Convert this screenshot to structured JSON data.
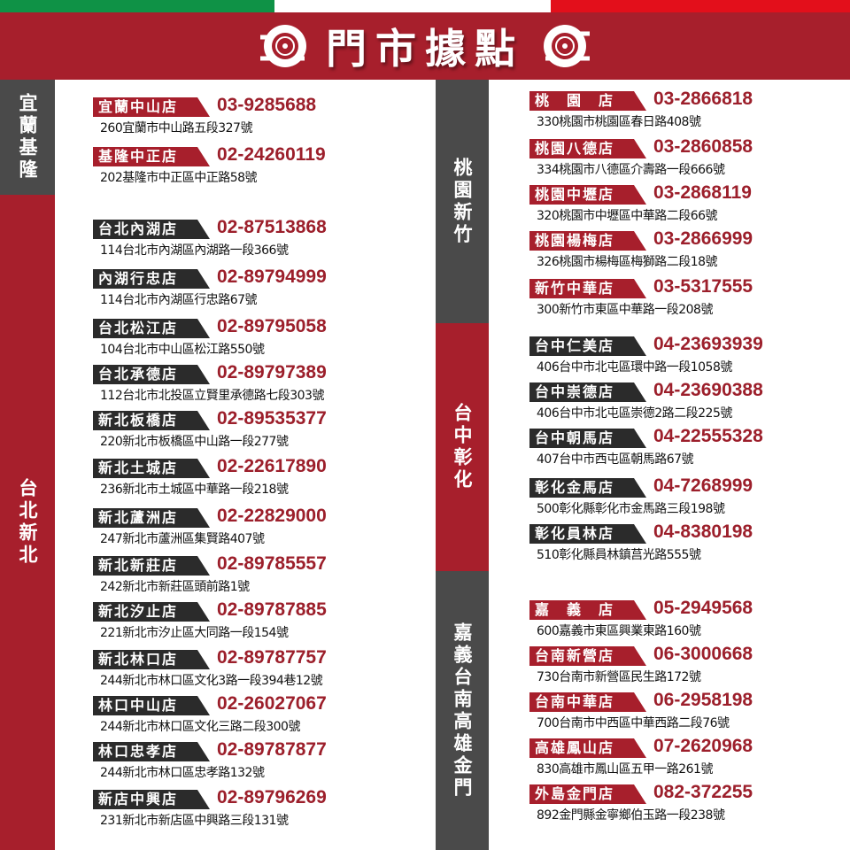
{
  "header": {
    "title": "門市據點",
    "icon": "tire-icon",
    "colors": {
      "red": "#a71f2c",
      "dark": "#4a4a4a",
      "green": "#0f9246"
    }
  },
  "regions": [
    {
      "name": "宜蘭基隆",
      "color": "dark",
      "stores": [
        {
          "name": "宜蘭中山店",
          "phone": "03-9285688",
          "address": "260宜蘭市中山路五段327號"
        },
        {
          "name": "基隆中正店",
          "phone": "02-24260119",
          "address": "202基隆市中正區中正路58號"
        }
      ]
    },
    {
      "name": "台北新北",
      "color": "red",
      "stores": [
        {
          "name": "台北內湖店",
          "phone": "02-87513868",
          "address": "114台北市內湖區內湖路一段366號"
        },
        {
          "name": "內湖行忠店",
          "phone": "02-89794999",
          "address": "114台北市內湖區行忠路67號"
        },
        {
          "name": "台北松江店",
          "phone": "02-89795058",
          "address": "104台北市中山區松江路550號"
        },
        {
          "name": "台北承德店",
          "phone": "02-89797389",
          "address": "112台北市北投區立賢里承德路七段303號"
        },
        {
          "name": "新北板橋店",
          "phone": "02-89535377",
          "address": "220新北市板橋區中山路一段277號"
        },
        {
          "name": "新北土城店",
          "phone": "02-22617890",
          "address": "236新北市土城區中華路一段218號"
        },
        {
          "name": "新北蘆洲店",
          "phone": "02-22829000",
          "address": "247新北市蘆洲區集賢路407號"
        },
        {
          "name": "新北新莊店",
          "phone": "02-89785557",
          "address": "242新北市新莊區頭前路1號"
        },
        {
          "name": "新北汐止店",
          "phone": "02-89787885",
          "address": "221新北市汐止區大同路一段154號"
        },
        {
          "name": "新北林口店",
          "phone": "02-89787757",
          "address": "244新北市林口區文化3路一段394巷12號"
        },
        {
          "name": "林口中山店",
          "phone": "02-26027067",
          "address": "244新北市林口區文化三路二段300號"
        },
        {
          "name": "林口忠孝店",
          "phone": "02-89787877",
          "address": "244新北市林口區忠孝路132號"
        },
        {
          "name": "新店中興店",
          "phone": "02-89796269",
          "address": "231新北市新店區中興路三段131號"
        }
      ]
    },
    {
      "name": "桃園新竹",
      "color": "dark",
      "stores": [
        {
          "name": "桃　園　店",
          "phone": "03-2866818",
          "address": "330桃園市桃園區春日路408號"
        },
        {
          "name": "桃園八德店",
          "phone": "03-2860858",
          "address": "334桃園市八德區介壽路一段666號"
        },
        {
          "name": "桃園中壢店",
          "phone": "03-2868119",
          "address": "320桃園市中壢區中華路二段66號"
        },
        {
          "name": "桃園楊梅店",
          "phone": "03-2866999",
          "address": "326桃園市楊梅區梅獅路二段18號"
        },
        {
          "name": "新竹中華店",
          "phone": "03-5317555",
          "address": "300新竹市東區中華路一段208號"
        }
      ]
    },
    {
      "name": "台中彰化",
      "color": "red",
      "stores": [
        {
          "name": "台中仁美店",
          "phone": "04-23693939",
          "address": "406台中市北屯區環中路一段1058號"
        },
        {
          "name": "台中崇德店",
          "phone": "04-23690388",
          "address": "406台中市北屯區崇德2路二段225號"
        },
        {
          "name": "台中朝馬店",
          "phone": "04-22555328",
          "address": "407台中市西屯區朝馬路67號"
        },
        {
          "name": "彰化金馬店",
          "phone": "04-7268999",
          "address": "500彰化縣彰化市金馬路三段198號"
        },
        {
          "name": "彰化員林店",
          "phone": "04-8380198",
          "address": "510彰化縣員林鎮莒光路555號"
        }
      ]
    },
    {
      "name": "嘉義台南高雄金門",
      "color": "dark",
      "stores": [
        {
          "name": "嘉　義　店",
          "phone": "05-2949568",
          "address": "600嘉義市東區興業東路160號"
        },
        {
          "name": "台南新營店",
          "phone": "06-3000668",
          "address": "730台南市新營區民生路172號"
        },
        {
          "name": "台南中華店",
          "phone": "06-2958198",
          "address": "700台南市中西區中華西路二段76號"
        },
        {
          "name": "高雄鳳山店",
          "phone": "07-2620968",
          "address": "830高雄市鳳山區五甲一路261號"
        },
        {
          "name": "外島金門店",
          "phone": "082-372255",
          "address": "892金門縣金寧鄉伯玉路一段238號"
        }
      ]
    }
  ]
}
